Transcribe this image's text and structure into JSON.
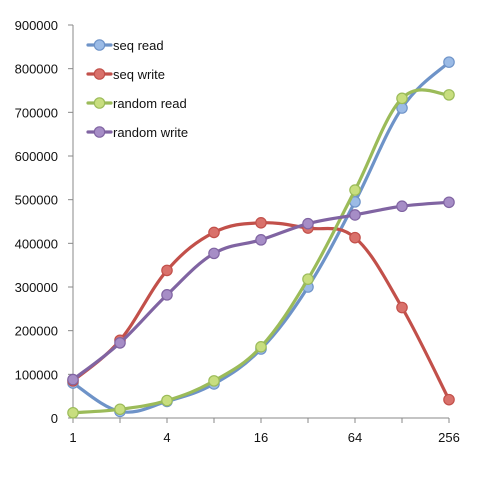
{
  "chart_data": {
    "type": "line",
    "title": "",
    "xlabel": "",
    "ylabel": "",
    "x_scale": "log2",
    "x": [
      1,
      2,
      4,
      8,
      16,
      32,
      64,
      128,
      256
    ],
    "x_tick_labels": [
      "1",
      "4",
      "16",
      "64",
      "256"
    ],
    "x_tick_values": [
      1,
      4,
      16,
      64,
      256
    ],
    "ylim": [
      0,
      900000
    ],
    "y_tick_labels": [
      "0",
      "100000",
      "200000",
      "300000",
      "400000",
      "500000",
      "600000",
      "700000",
      "800000",
      "900000"
    ],
    "y_tick_values": [
      0,
      100000,
      200000,
      300000,
      400000,
      500000,
      600000,
      700000,
      800000,
      900000
    ],
    "grid": false,
    "legend_position": "top-left",
    "smooth": true,
    "series": [
      {
        "name": "seq read",
        "color": "#6e93c8",
        "marker_color": "#9bbbe6",
        "values": [
          80000,
          15000,
          38000,
          78000,
          158000,
          300000,
          495000,
          710000,
          815000
        ]
      },
      {
        "name": "seq write",
        "color": "#c2504a",
        "marker_color": "#d9716b",
        "values": [
          85000,
          178000,
          338000,
          425000,
          447000,
          435000,
          413000,
          253000,
          42000
        ]
      },
      {
        "name": "random read",
        "color": "#9bbb59",
        "marker_color": "#c8de7f",
        "values": [
          12000,
          20000,
          40000,
          85000,
          163000,
          318000,
          522000,
          732000,
          740000
        ]
      },
      {
        "name": "random write",
        "color": "#8064a2",
        "marker_color": "#a68dc6",
        "values": [
          88000,
          172000,
          282000,
          377000,
          408000,
          445000,
          465000,
          485000,
          494000
        ]
      }
    ]
  }
}
